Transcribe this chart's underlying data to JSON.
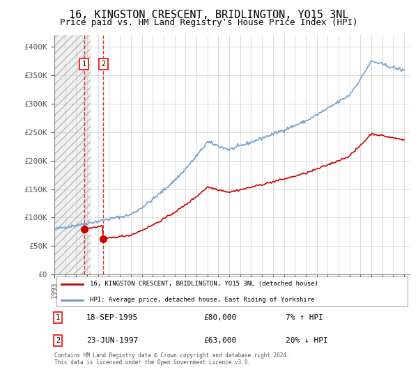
{
  "title": "16, KINGSTON CRESCENT, BRIDLINGTON, YO15 3NL",
  "subtitle": "Price paid vs. HM Land Registry's House Price Index (HPI)",
  "title_fontsize": 11,
  "subtitle_fontsize": 9,
  "ylabel_ticks": [
    "£0",
    "£50K",
    "£100K",
    "£150K",
    "£200K",
    "£250K",
    "£300K",
    "£350K",
    "£400K"
  ],
  "ytick_vals": [
    0,
    50000,
    100000,
    150000,
    200000,
    250000,
    300000,
    350000,
    400000
  ],
  "ylim": [
    0,
    420000
  ],
  "xlim_start": 1993.0,
  "xlim_end": 2025.5,
  "sale1_year": 1995.72,
  "sale1_price": 80000,
  "sale2_year": 1997.48,
  "sale2_price": 63000,
  "sale1_label": "18-SEP-1995",
  "sale1_amount": "£80,000",
  "sale1_hpi": "7% ↑ HPI",
  "sale2_label": "23-JUN-1997",
  "sale2_amount": "£63,000",
  "sale2_hpi": "20% ↓ HPI",
  "legend_line1": "16, KINGSTON CRESCENT, BRIDLINGTON, YO15 3NL (detached house)",
  "legend_line2": "HPI: Average price, detached house, East Riding of Yorkshire",
  "footnote": "Contains HM Land Registry data © Crown copyright and database right 2024.\nThis data is licensed under the Open Government Licence v3.0.",
  "red_color": "#cc0000",
  "blue_color": "#6699cc",
  "background_color": "#ffffff",
  "grid_color": "#cccccc"
}
